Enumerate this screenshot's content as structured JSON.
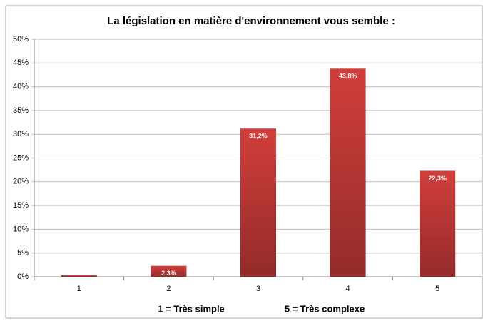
{
  "chart_data": {
    "type": "bar",
    "title": "La législation en matière d'environnement vous semble :",
    "categories": [
      "1",
      "2",
      "3",
      "4",
      "5"
    ],
    "values": [
      0.3,
      2.3,
      31.2,
      43.8,
      22.3
    ],
    "value_labels": [
      null,
      "2,3%",
      "31,2%",
      "43,8%",
      "22,3%"
    ],
    "color": "#d13e3b",
    "ylim": [
      0,
      50
    ],
    "yticks": [
      {
        "value": 0,
        "label": "0%"
      },
      {
        "value": 5,
        "label": "5%"
      },
      {
        "value": 10,
        "label": "10%"
      },
      {
        "value": 15,
        "label": "15%"
      },
      {
        "value": 20,
        "label": "20%"
      },
      {
        "value": 25,
        "label": "25%"
      },
      {
        "value": 30,
        "label": "30%"
      },
      {
        "value": 35,
        "label": "35%"
      },
      {
        "value": 40,
        "label": "40%"
      },
      {
        "value": 45,
        "label": "45%"
      },
      {
        "value": 50,
        "label": "50%"
      }
    ],
    "grid": true,
    "annotations": [
      "1 = Très simple",
      "5 = Très complexe"
    ]
  }
}
